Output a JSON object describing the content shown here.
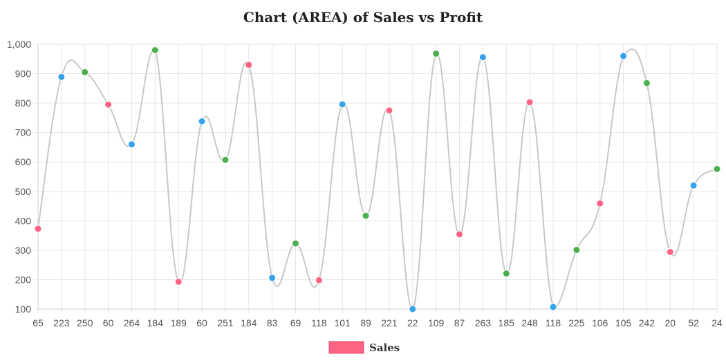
{
  "chart_data": {
    "type": "area",
    "title": "Chart (AREA) of Sales vs Profit",
    "xlabel": "",
    "ylabel": "",
    "ylim": [
      100,
      1000
    ],
    "yticks": [
      100,
      200,
      300,
      400,
      500,
      600,
      700,
      800,
      900,
      1000
    ],
    "ytick_labels": [
      "100",
      "200",
      "300",
      "400",
      "500",
      "600",
      "700",
      "800",
      "900",
      "1,000"
    ],
    "categories": [
      "65",
      "223",
      "250",
      "60",
      "264",
      "184",
      "189",
      "60",
      "251",
      "184",
      "83",
      "69",
      "118",
      "101",
      "89",
      "221",
      "22",
      "109",
      "87",
      "263",
      "185",
      "248",
      "118",
      "225",
      "106",
      "105",
      "242",
      "20",
      "52",
      "24"
    ],
    "series": [
      {
        "name": "Sales",
        "values": [
          373,
          889,
          905,
          795,
          660,
          980,
          193,
          738,
          607,
          930,
          206,
          323,
          198,
          796,
          417,
          775,
          100,
          968,
          354,
          956,
          221,
          803,
          107,
          301,
          459,
          960,
          868,
          294,
          520,
          576
        ],
        "point_colors": [
          "#ff6384",
          "#36a2eb",
          "#4caf50",
          "#ff6384",
          "#36a2eb",
          "#4caf50",
          "#ff6384",
          "#36a2eb",
          "#4caf50",
          "#ff6384",
          "#36a2eb",
          "#4caf50",
          "#ff6384",
          "#36a2eb",
          "#4caf50",
          "#ff6384",
          "#36a2eb",
          "#4caf50",
          "#ff6384",
          "#36a2eb",
          "#4caf50",
          "#ff6384",
          "#36a2eb",
          "#4caf50",
          "#ff6384",
          "#36a2eb",
          "#4caf50",
          "#ff6384",
          "#36a2eb",
          "#4caf50"
        ],
        "line_color": "#c8c8c8",
        "legend_color": "#ff6384"
      }
    ],
    "grid": true,
    "legend_position": "bottom"
  }
}
